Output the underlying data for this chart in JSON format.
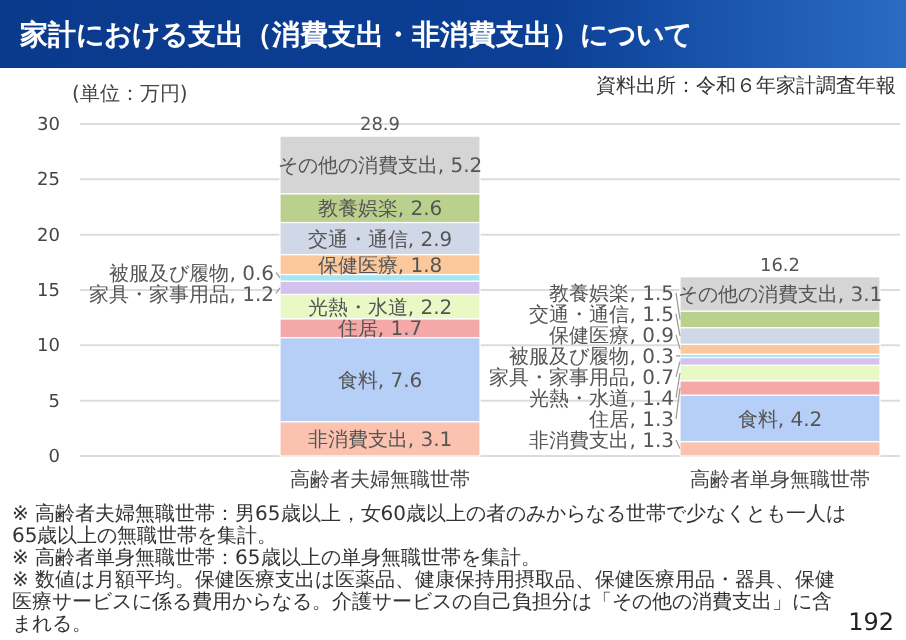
{
  "chart_data": {
    "type": "bar",
    "stacked": true,
    "title": "家計における支出（消費支出・非消費支出）について",
    "ylabel": "(単位：万円)",
    "categories": [
      "高齢者夫婦無職世帯",
      "高齢者単身無職世帯"
    ],
    "series": [
      {
        "name": "非消費支出",
        "color": "#fbc2b0",
        "values": [
          3.1,
          1.3
        ],
        "value_labels": [
          ", 3.1",
          ", 1.3"
        ]
      },
      {
        "name": "食料",
        "color": "#b5cff6",
        "values": [
          7.6,
          4.2
        ],
        "value_labels": [
          ", 7.6",
          ", 4.2"
        ]
      },
      {
        "name": "住居",
        "color": "#f5a8a8",
        "values": [
          1.7,
          1.3
        ],
        "value_labels": [
          ", 1.7",
          ", 1.3"
        ]
      },
      {
        "name": "光熱・水道",
        "color": "#e8f9c6",
        "values": [
          2.2,
          1.4
        ],
        "value_labels": [
          ", 2.2",
          ", 1.4"
        ]
      },
      {
        "name": "家具・家事用品",
        "color": "#d3c3ec",
        "values": [
          1.2,
          0.7
        ],
        "value_labels": [
          ", 1.2",
          ", 0.7"
        ]
      },
      {
        "name": "被服及び履物",
        "color": "#a6e6f3",
        "values": [
          0.6,
          0.3
        ],
        "value_labels": [
          ", 0.6",
          ", 0.3"
        ]
      },
      {
        "name": "保健医療",
        "color": "#fbc89c",
        "values": [
          1.8,
          0.9
        ],
        "value_labels": [
          ", 1.8",
          ", 0.9"
        ]
      },
      {
        "name": "交通・通信",
        "color": "#d0d7e7",
        "values": [
          2.9,
          1.5
        ],
        "value_labels": [
          ", 2.9",
          ", 1.5"
        ]
      },
      {
        "name": "教養娯楽",
        "color": "#bad18e",
        "values": [
          2.6,
          1.5
        ],
        "value_labels": [
          ", 2.6",
          ", 1.5"
        ]
      },
      {
        "name": "その他の消費支出",
        "color": "#d5d5d5",
        "values": [
          5.2,
          3.1
        ],
        "value_labels": [
          ", 5.2",
          ", 3.1"
        ]
      }
    ],
    "ylim": [
      0,
      30
    ],
    "yticks": [
      0,
      5,
      10,
      15,
      20,
      25,
      30
    ],
    "grid": "y",
    "totals": [
      "28.9",
      "16.2"
    ],
    "annotations": [
      "資料出所：令和６年家計調査年報",
      "※ 高齢者夫婦無職世帯：男65歳以上，女60歳以上の者のみからなる世帯で少なくとも一人は65歳以上の無職世帯を集計。",
      "※ 高齢者単身無職世帯：65歳以上の単身無職世帯を集計。",
      "※ 数値は月額平均。保健医療支出は医薬品、健康保持用摂取品、保健医療用品・器具、保健医療サービスに係る費用からなる。介護サービスの自己負担分は「その他の消費支出」に含まれる。",
      "192"
    ]
  }
}
